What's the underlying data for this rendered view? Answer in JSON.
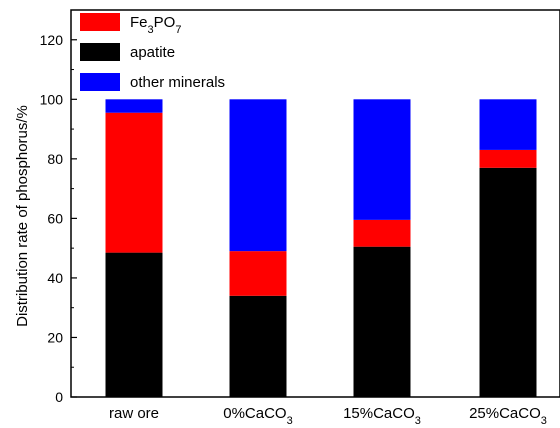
{
  "chart_data": {
    "type": "bar",
    "stacked": true,
    "title": "",
    "xlabel": "",
    "ylabel": "Distribution rate of phosphorus/%",
    "ylim": [
      0,
      130
    ],
    "yticks": [
      0,
      20,
      40,
      60,
      80,
      100,
      120
    ],
    "grid": false,
    "legend_position": "top-left",
    "categories": [
      {
        "main": "raw ore",
        "sub": ""
      },
      {
        "main": "0%CaCO",
        "sub": "3"
      },
      {
        "main": "15%CaCO",
        "sub": "3"
      },
      {
        "main": "25%CaCO",
        "sub": "3"
      }
    ],
    "series": [
      {
        "key": "apatite",
        "legend": {
          "main": "apatite",
          "sub": "",
          "tail": ""
        },
        "color": "#000000",
        "values": [
          48.5,
          34,
          50.5,
          77
        ]
      },
      {
        "key": "fe3po7",
        "legend": {
          "main": "Fe",
          "sub": "3",
          "tail": "PO",
          "sub2": "7"
        },
        "color": "#ff0000",
        "values": [
          47,
          15,
          9,
          6
        ]
      },
      {
        "key": "other",
        "legend": {
          "main": "other minerals",
          "sub": "",
          "tail": ""
        },
        "color": "#0000ff",
        "values": [
          4.5,
          51,
          40.5,
          17
        ]
      }
    ],
    "legend_order": [
      "fe3po7",
      "apatite",
      "other"
    ]
  }
}
